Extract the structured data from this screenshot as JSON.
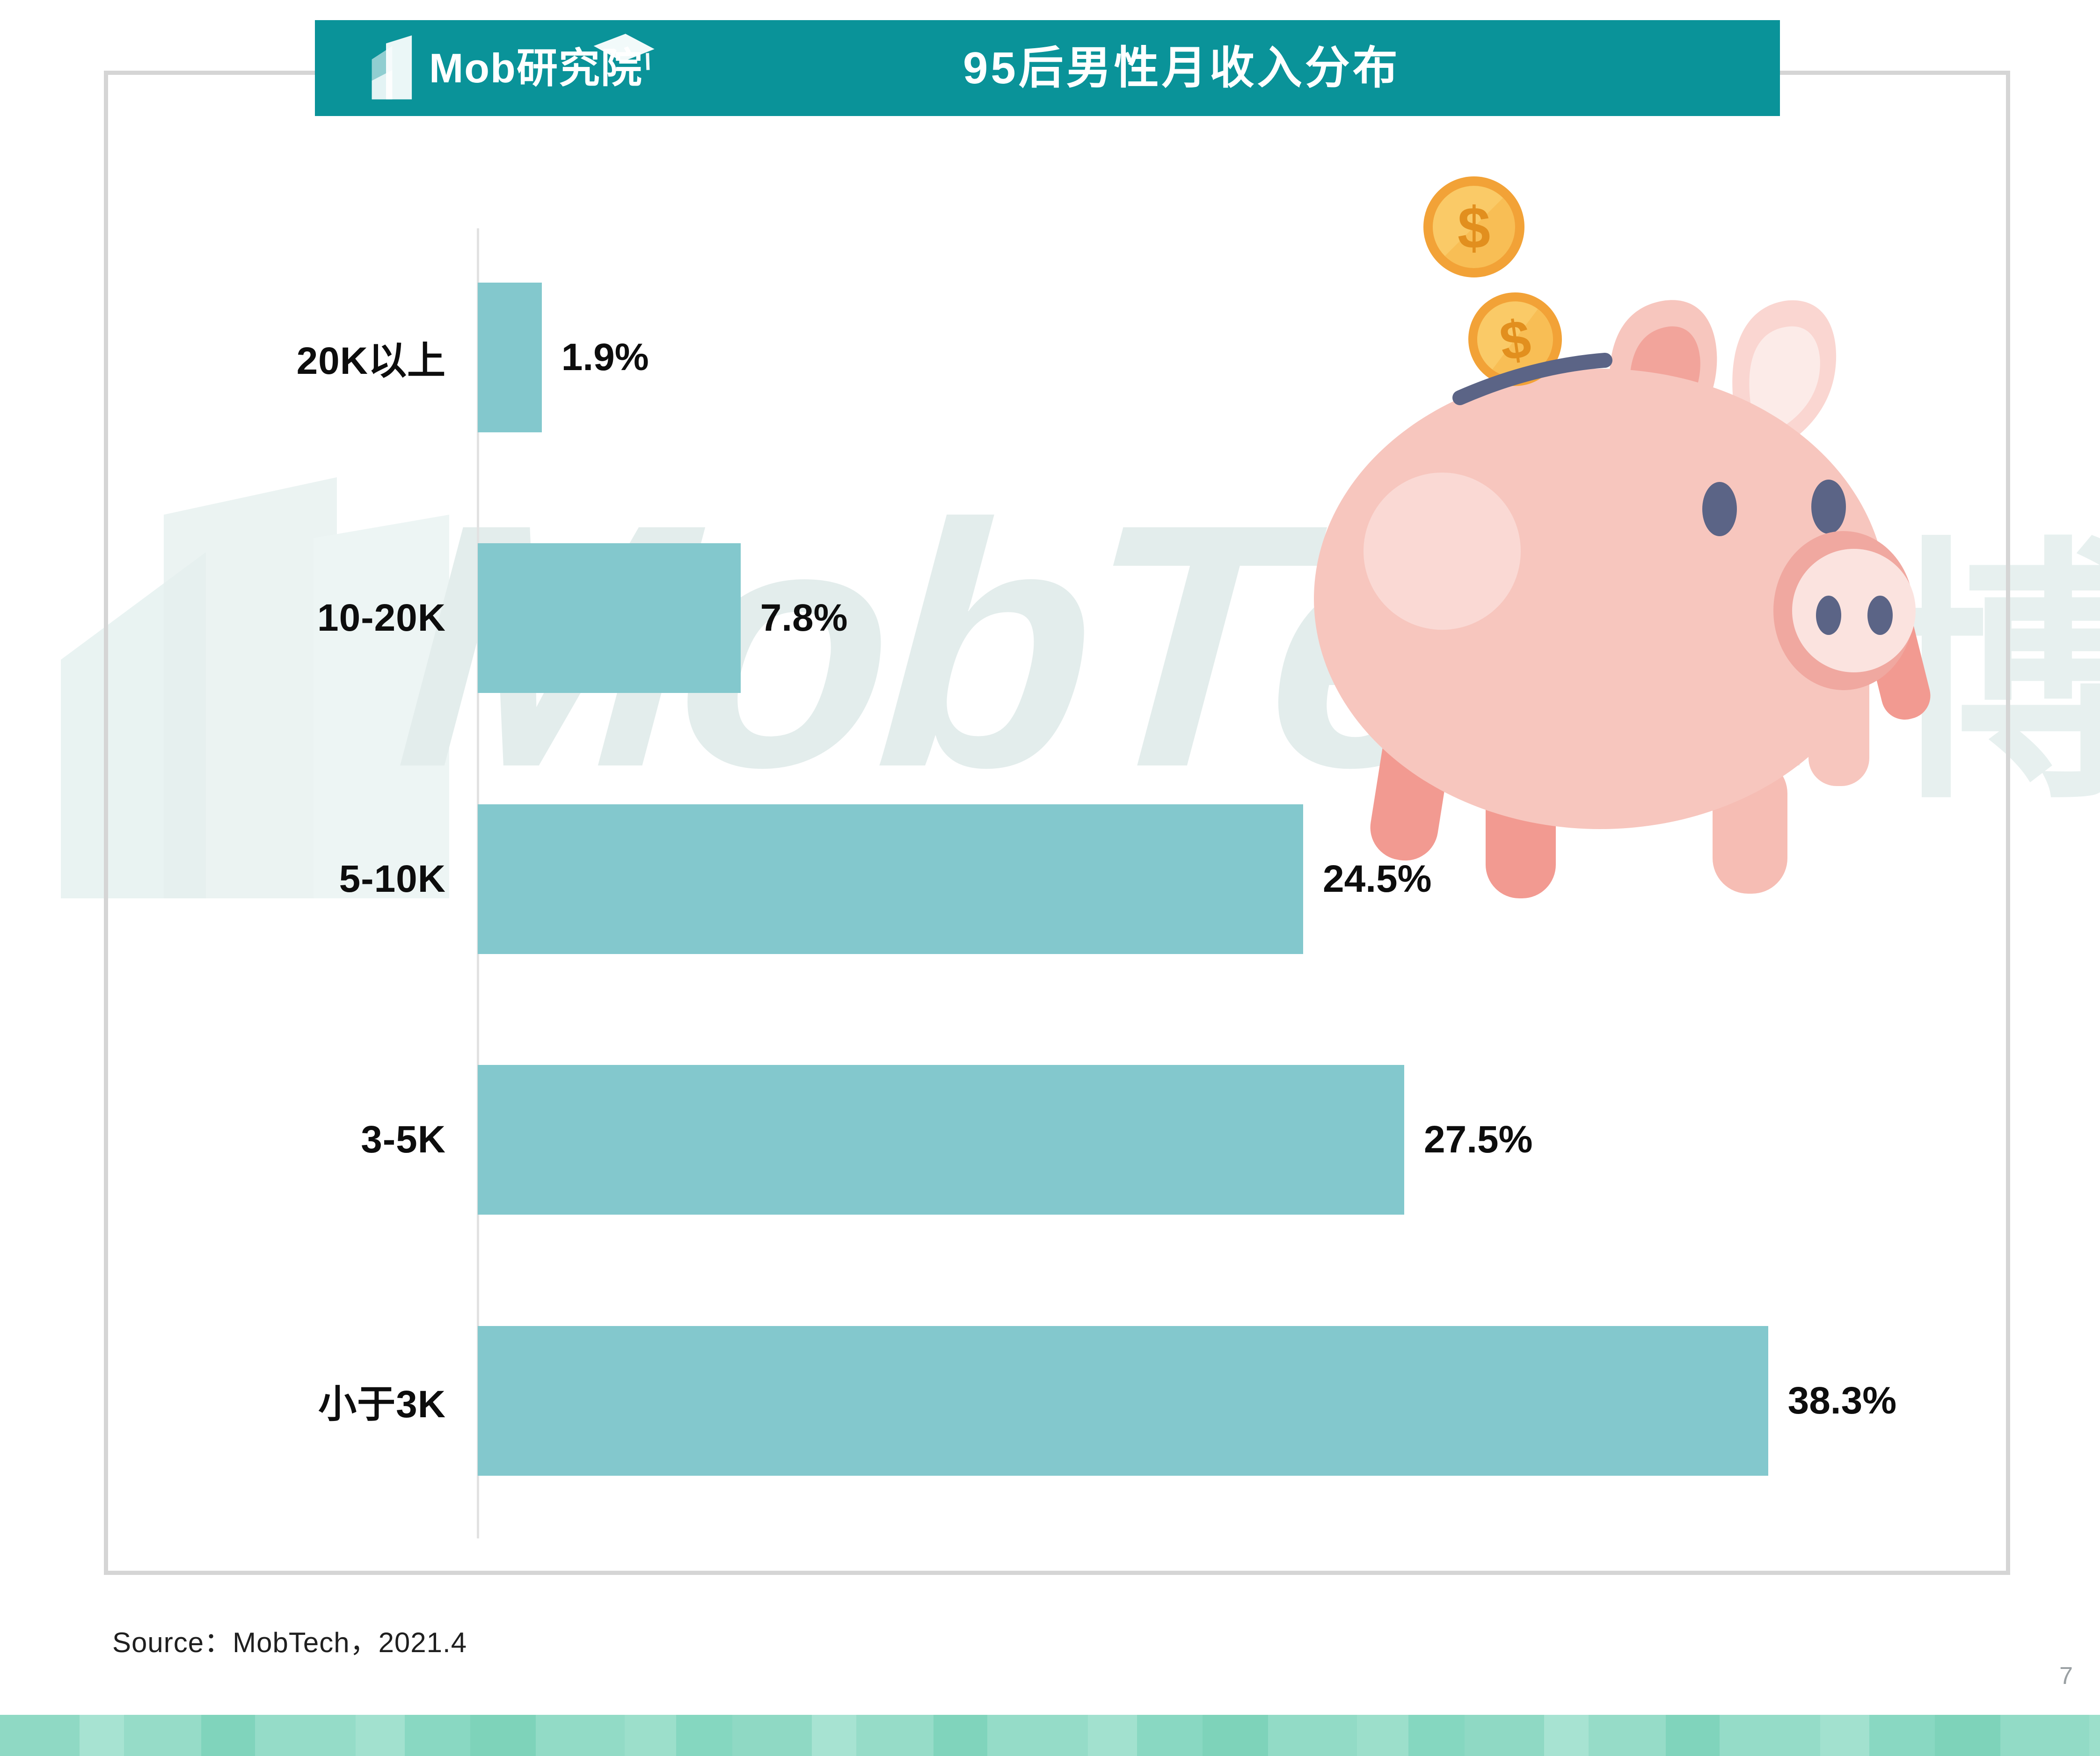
{
  "banner": {
    "logo_text": "Mob研究院",
    "title": "95后男性月收入分布"
  },
  "chart_data": {
    "type": "bar",
    "orientation": "horizontal",
    "title": "95后男性月收入分布",
    "categories": [
      "20K以上",
      "10-20K",
      "5-10K",
      "3-5K",
      "小于3K"
    ],
    "values": [
      1.9,
      7.8,
      24.5,
      27.5,
      38.3
    ],
    "labels": [
      "1.9%",
      "7.8%",
      "24.5%",
      "27.5%",
      "38.3%"
    ],
    "xlabel": "",
    "ylabel": "",
    "xlim": [
      0,
      40
    ],
    "grid": false,
    "legend": "none",
    "bar_color": "#83c8cd"
  },
  "watermark": {
    "text": "MobTech",
    "cjk": "博",
    "color": "#e3edec"
  },
  "illustration": {
    "name": "piggy-bank-with-coins",
    "coin_symbol": "$"
  },
  "footer": {
    "source": "Source：MobTech，2021.4",
    "page_number": "7"
  },
  "colors": {
    "header_teal": "#0a9399",
    "bar_teal": "#83c8cd",
    "frame_border": "#d5d5d5",
    "strip_mint": "#8fd9c4",
    "pig_body": "#f7c6be",
    "pig_dark": "#5b6486",
    "coin_gold": "#f8be55"
  }
}
